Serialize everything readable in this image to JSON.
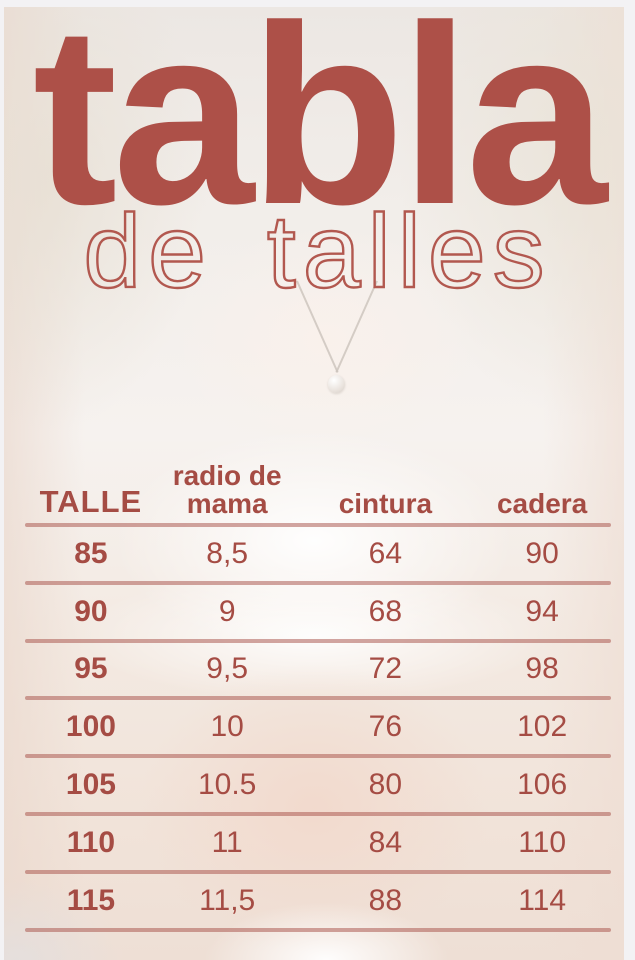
{
  "header": {
    "title": "tabla",
    "subtitle": "de talles"
  },
  "colors": {
    "title_red": "#ad5048",
    "subtitle_red": "#b2584f",
    "table_text": "#a54c44",
    "divider": "#c08178",
    "background_wash": "#f2ece8"
  },
  "background": {
    "description_icon": "faded-model-photo",
    "pearl_necklace_icon": "pearl-pendant"
  },
  "table": {
    "columns": [
      "TALLE",
      "radio de mama",
      "cintura",
      "cadera"
    ],
    "rows": [
      {
        "talle": "85",
        "radio_de_mama": "8,5",
        "cintura": "64",
        "cadera": "90"
      },
      {
        "talle": "90",
        "radio_de_mama": "9",
        "cintura": "68",
        "cadera": "94"
      },
      {
        "talle": "95",
        "radio_de_mama": "9,5",
        "cintura": "72",
        "cadera": "98"
      },
      {
        "talle": "100",
        "radio_de_mama": "10",
        "cintura": "76",
        "cadera": "102"
      },
      {
        "talle": "105",
        "radio_de_mama": "10.5",
        "cintura": "80",
        "cadera": "106"
      },
      {
        "talle": "110",
        "radio_de_mama": "11",
        "cintura": "84",
        "cadera": "110"
      },
      {
        "talle": "115",
        "radio_de_mama": "11,5",
        "cintura": "88",
        "cadera": "114"
      }
    ]
  },
  "chart_data": {
    "type": "table",
    "title": "tabla de talles",
    "columns": [
      "TALLE",
      "radio de mama",
      "cintura",
      "cadera"
    ],
    "rows": [
      [
        "85",
        "8,5",
        "64",
        "90"
      ],
      [
        "90",
        "9",
        "68",
        "94"
      ],
      [
        "95",
        "9,5",
        "72",
        "98"
      ],
      [
        "100",
        "10",
        "76",
        "102"
      ],
      [
        "105",
        "10.5",
        "80",
        "106"
      ],
      [
        "110",
        "11",
        "84",
        "110"
      ],
      [
        "115",
        "11,5",
        "88",
        "114"
      ]
    ]
  }
}
